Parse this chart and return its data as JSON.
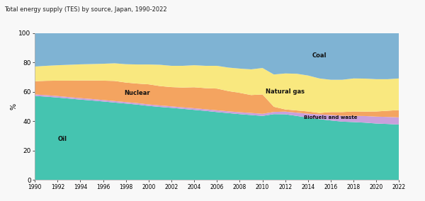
{
  "title": "Total energy supply (TES) by source, Japan, 1990-2022",
  "ylabel": "%",
  "ylim": [
    0,
    100
  ],
  "background_color": "#f8f8f8",
  "plot_bg_color": "#ffffff",
  "years": [
    1990,
    1991,
    1992,
    1993,
    1994,
    1995,
    1996,
    1997,
    1998,
    1999,
    2000,
    2001,
    2002,
    2003,
    2004,
    2005,
    2006,
    2007,
    2008,
    2009,
    2010,
    2011,
    2012,
    2013,
    2014,
    2015,
    2016,
    2017,
    2018,
    2019,
    2020,
    2021,
    2022
  ],
  "series": {
    "Oil": [
      57.3,
      56.8,
      56.2,
      55.5,
      54.8,
      54.2,
      53.5,
      52.8,
      52.1,
      51.4,
      50.5,
      49.8,
      49.2,
      48.5,
      47.8,
      47.1,
      46.3,
      45.6,
      44.9,
      44.3,
      43.7,
      44.9,
      44.8,
      43.7,
      42.5,
      41.5,
      40.6,
      39.8,
      39.5,
      39.1,
      38.5,
      38.2,
      37.8
    ],
    "Biofuels and waste": [
      1.0,
      1.0,
      1.0,
      1.0,
      1.0,
      1.0,
      1.0,
      1.0,
      1.0,
      1.0,
      1.0,
      1.0,
      1.0,
      1.0,
      1.1,
      1.1,
      1.2,
      1.2,
      1.3,
      1.4,
      1.4,
      1.5,
      1.8,
      2.2,
      2.7,
      3.2,
      3.7,
      4.0,
      4.2,
      4.5,
      4.7,
      4.8,
      4.9
    ],
    "Nuclear": [
      9.0,
      9.8,
      10.5,
      11.2,
      12.0,
      12.6,
      13.2,
      13.7,
      13.3,
      13.3,
      13.7,
      13.2,
      13.1,
      13.5,
      14.3,
      14.4,
      14.8,
      13.8,
      13.2,
      12.2,
      13.2,
      3.5,
      1.5,
      1.5,
      1.5,
      1.0,
      2.0,
      2.5,
      3.0,
      3.0,
      3.5,
      4.2,
      5.0
    ],
    "Natural gas": [
      10.0,
      10.2,
      10.5,
      10.8,
      11.0,
      11.2,
      11.5,
      12.0,
      12.5,
      13.0,
      13.5,
      14.5,
      14.5,
      14.8,
      15.0,
      15.2,
      15.5,
      16.0,
      16.5,
      17.5,
      18.0,
      22.0,
      24.5,
      25.0,
      24.5,
      23.5,
      22.0,
      22.0,
      22.5,
      22.5,
      22.0,
      21.5,
      21.5
    ],
    "Coal": [
      22.7,
      22.2,
      21.8,
      21.5,
      21.2,
      21.0,
      20.8,
      20.5,
      21.1,
      21.3,
      21.3,
      21.5,
      22.2,
      22.2,
      21.8,
      22.2,
      22.2,
      23.4,
      24.1,
      24.6,
      23.7,
      28.1,
      27.4,
      27.6,
      28.8,
      30.8,
      31.7,
      31.7,
      30.8,
      30.9,
      31.3,
      31.3,
      30.8
    ]
  },
  "colors": {
    "Oil": "#45c4b0",
    "Biofuels and waste": "#c9a0dc",
    "Nuclear": "#f4a460",
    "Natural gas": "#f9e87f",
    "Coal": "#7fb3d3"
  },
  "labels": {
    "Oil": "Oil",
    "Biofuels and waste": "Biofuels and waste",
    "Natural gas": "Natural gas",
    "Nuclear": "Nuclear",
    "Coal": "Coal"
  },
  "yticks": [
    0,
    20,
    40,
    60,
    80,
    100
  ],
  "xtick_labels": [
    "1990",
    "1992",
    "1994",
    "1996",
    "1998",
    "2000",
    "2002",
    "2004",
    "2006",
    "2008",
    "2010",
    "2012",
    "2014",
    "2016",
    "2018",
    "2020",
    "2022"
  ]
}
